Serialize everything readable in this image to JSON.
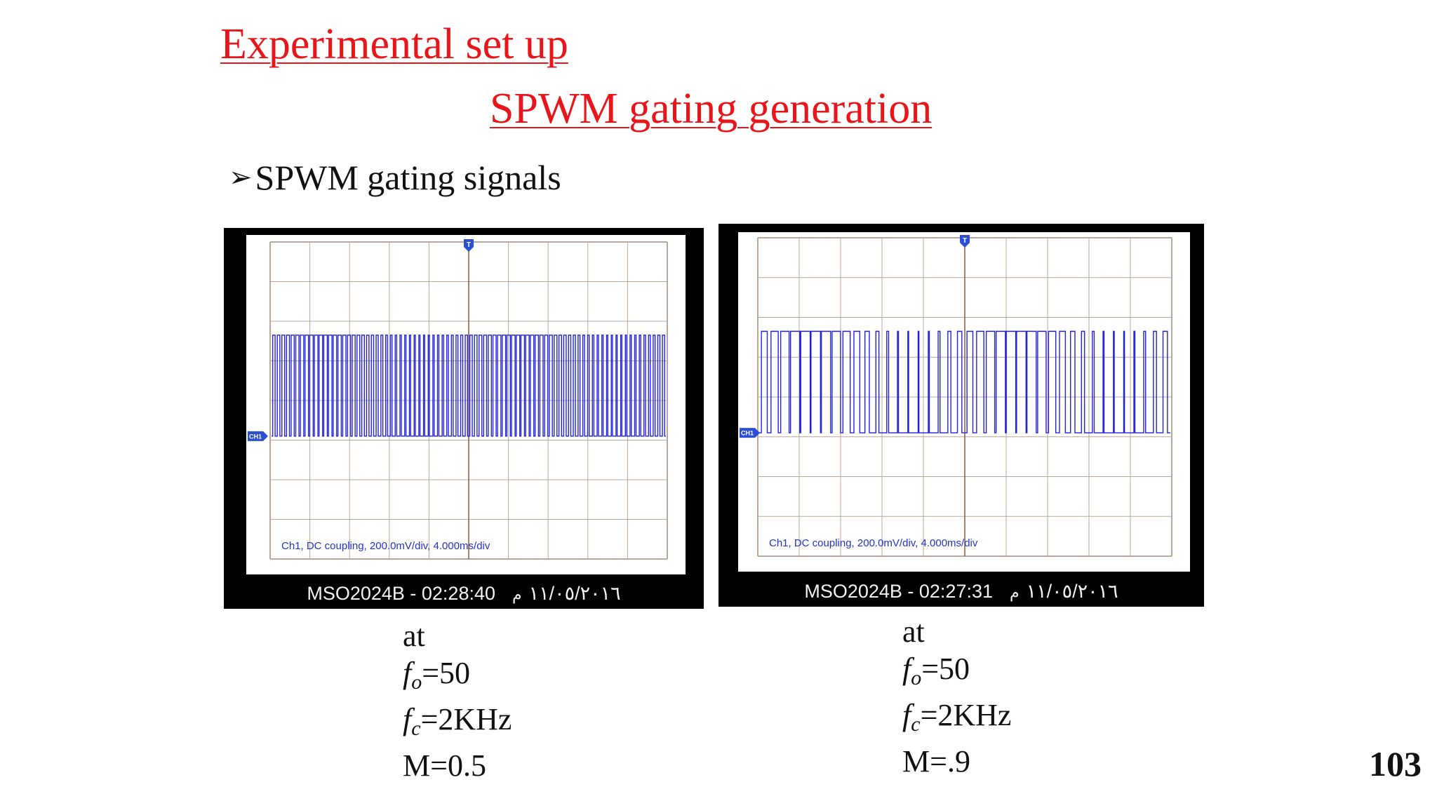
{
  "title": "Experimental set up",
  "subtitle": "SPWM gating generation",
  "bullet": {
    "symbol": "➢",
    "text": "SPWM gating signals"
  },
  "scopes": [
    {
      "caption": "Ch1, DC coupling, 200.0mV/div, 4.000ms/div",
      "trigger_marker": "T",
      "channel_marker": "CH1",
      "footer": {
        "model_time": "MSO2024B - 02:28:40",
        "date": "١١/٠٥/٢٠١٦",
        "suffix": "م"
      },
      "params": {
        "at": "at",
        "fo_symbol": "f",
        "fo_sub": "o",
        "fo_value": "=50",
        "fc_symbol": "f",
        "fc_sub": "c",
        "fc_value": "=2KHz",
        "m": "M=0.5"
      },
      "pulse_count": 84,
      "modulation_index": 0.5
    },
    {
      "caption": "Ch1, DC coupling, 200.0mV/div, 4.000ms/div",
      "trigger_marker": "T",
      "channel_marker": "CH1",
      "footer": {
        "model_time": "MSO2024B - 02:27:31",
        "date": "١١/٠٥/٢٠١٦",
        "suffix": "م"
      },
      "params": {
        "at": "at",
        "fo_symbol": "f",
        "fo_sub": "o",
        "fo_value": "=50",
        "fc_symbol": "f",
        "fc_sub": "c",
        "fc_value": "=2KHz",
        "m": "M=.9"
      },
      "pulse_count": 40,
      "modulation_index": 0.9
    }
  ],
  "colors": {
    "title": "#e8151b",
    "trace": "#2222dd",
    "grid": "#b8a89a",
    "marker": "#2a4fd6"
  },
  "page_number": "103"
}
